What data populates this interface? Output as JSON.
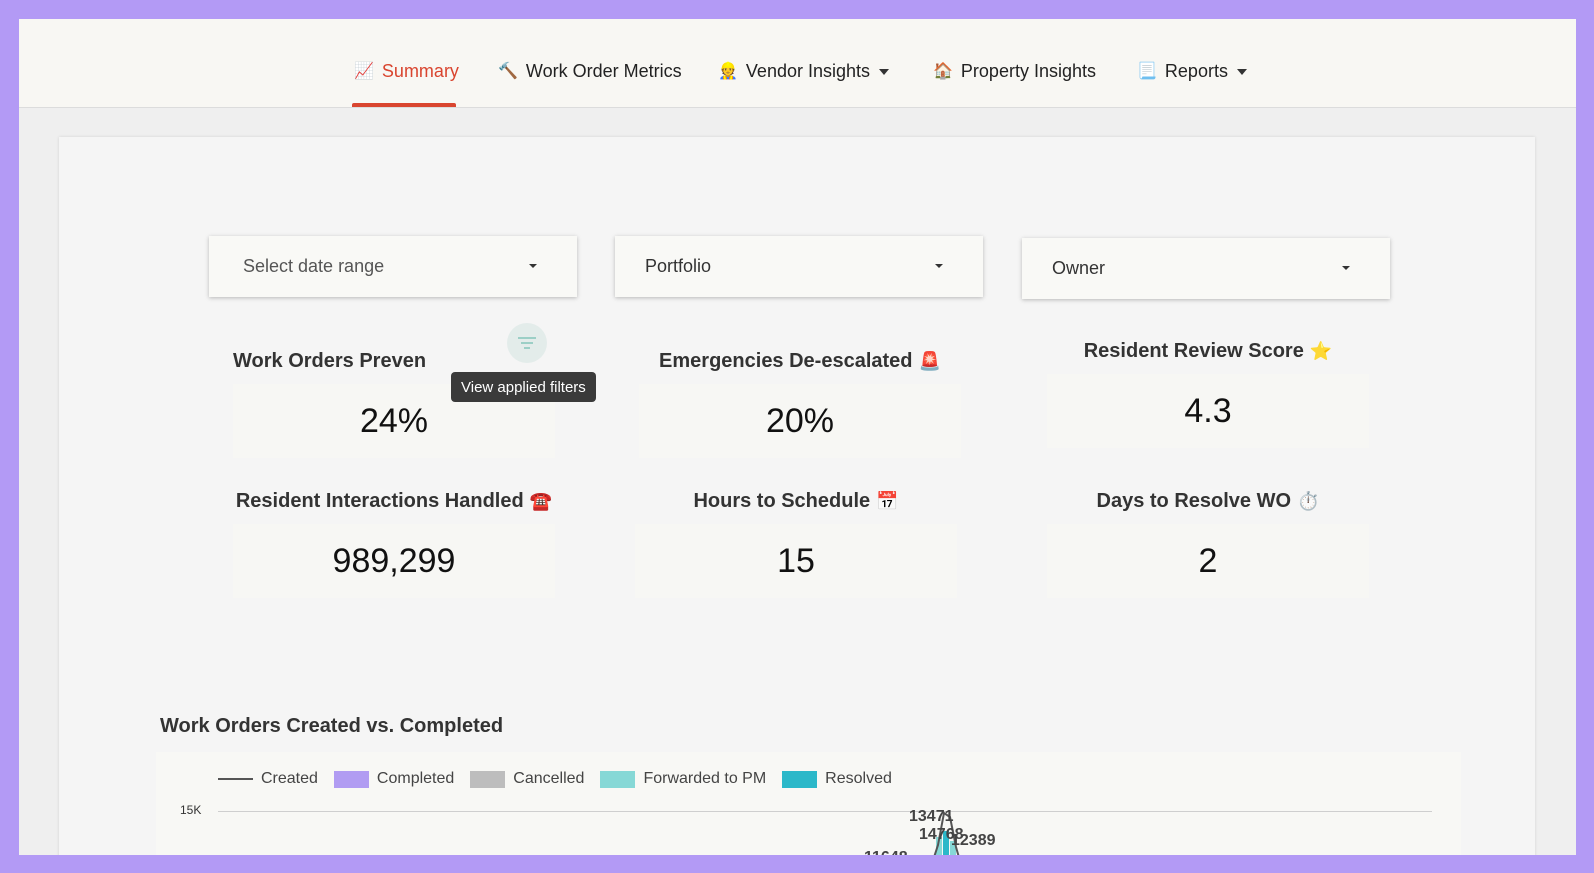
{
  "nav": {
    "tabs": [
      {
        "label": "Summary",
        "icon": "📈"
      },
      {
        "label": "Work Order Metrics",
        "icon": "🔨"
      },
      {
        "label": "Vendor Insights",
        "icon": "👷"
      },
      {
        "label": "Property Insights",
        "icon": "🏠"
      },
      {
        "label": "Reports",
        "icon": "📃"
      }
    ]
  },
  "filters": {
    "date_range_placeholder": "Select date range",
    "portfolio": "Portfolio",
    "owner": "Owner",
    "tooltip": "View applied filters"
  },
  "metrics": [
    {
      "title": "Work Orders Preven",
      "icon": "",
      "value": "24%"
    },
    {
      "title": "Emergencies De-escalated",
      "icon": "🚨",
      "value": "20%"
    },
    {
      "title": "Resident Review Score",
      "icon": "⭐",
      "value": "4.3"
    },
    {
      "title": "Resident Interactions Handled",
      "icon": "☎️",
      "value": "989,299"
    },
    {
      "title": "Hours to Schedule",
      "icon": "📅",
      "value": "15"
    },
    {
      "title": "Days to Resolve WO",
      "icon": "⏱️",
      "value": "2"
    }
  ],
  "chart_data": {
    "type": "bar",
    "title": "Work Orders Created vs. Completed",
    "legend": [
      "Created",
      "Completed",
      "Cancelled",
      "Forwarded to PM",
      "Resolved"
    ],
    "legend_colors": [
      "#555555",
      "#b19cf2",
      "#bdbdbd",
      "#86d8d6",
      "#2bb8c9"
    ],
    "y_ticks": [
      "15K"
    ],
    "ylim": [
      0,
      15000
    ],
    "data_labels": [
      "13471",
      "14768",
      "12389",
      "11648"
    ]
  }
}
